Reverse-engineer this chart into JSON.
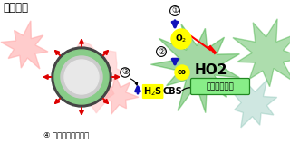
{
  "title": "低酸素時",
  "bg_color": "#ffffff",
  "label_4": "④ 速やかな血管拡張",
  "label_3": "③",
  "label_1": "①",
  "label_2": "②",
  "label_O2": "O$_2$",
  "label_co": "co",
  "label_HO2": "HO2",
  "label_sensor": "酸素センサー",
  "label_H2S": "H$_2$S",
  "label_CBS": "CBS",
  "pink_cell_color": "#ffaaaa",
  "vessel_ring_color": "#88cc88",
  "vessel_dark_color": "#555555",
  "vessel_inner_color": "#cccccc",
  "arrow_red": "#dd0000",
  "arrow_blue": "#1111bb",
  "yellow_bg": "#ffff00",
  "sensor_bg": "#88ee88",
  "green_color": "#33aa33",
  "green_light": "#aaddaa"
}
